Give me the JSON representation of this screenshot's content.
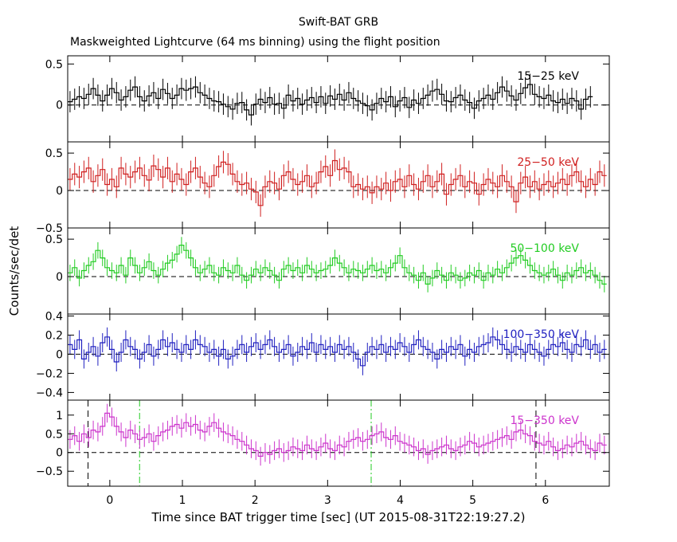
{
  "chart_data": {
    "type": "line",
    "title": "Swift-BAT GRB",
    "subtitle": "Maskweighted Lightcurve (64 ms binning) using the flight position",
    "xlabel": "Time since BAT trigger time [sec] (UT 2015-08-31T22:19:27.2)",
    "ylabel": "Counts/sec/det",
    "xlim": [
      -0.58,
      6.88
    ],
    "xticks": [
      0,
      1,
      2,
      3,
      4,
      5,
      6
    ],
    "bin_width": 0.064,
    "panels": [
      {
        "name": "15-25 keV",
        "label": "15−25 keV",
        "color": "#000000",
        "ylim": [
          -0.45,
          0.6
        ],
        "yticks": [
          0,
          0.5
        ],
        "ytick_labels": [
          "0",
          "0.5"
        ],
        "values": [
          0.04,
          0.07,
          0.1,
          0.08,
          0.13,
          0.2,
          0.12,
          0.05,
          0.12,
          0.2,
          0.15,
          0.06,
          0.1,
          0.18,
          0.22,
          0.1,
          0.05,
          0.11,
          0.15,
          0.08,
          0.19,
          0.14,
          0.08,
          0.12,
          0.2,
          0.18,
          0.2,
          0.22,
          0.15,
          0.12,
          0.08,
          0.05,
          0.04,
          0.01,
          -0.02,
          -0.05,
          0.02,
          0.03,
          -0.06,
          -0.12,
          0.01,
          0.07,
          0.03,
          0.09,
          0.01,
          0.02,
          -0.04,
          0.12,
          0.05,
          0.08,
          0.01,
          0.06,
          0.09,
          0.03,
          0.1,
          0.02,
          0.11,
          0.07,
          0.13,
          0.06,
          0.15,
          0.08,
          0.05,
          0.02,
          -0.01,
          -0.06,
          0.02,
          0.08,
          0.04,
          0.1,
          -0.02,
          0.05,
          0.09,
          -0.03,
          0.06,
          0.02,
          0.08,
          0.12,
          0.17,
          0.19,
          0.13,
          0.05,
          0.04,
          0.09,
          0.12,
          0.06,
          0.03,
          -0.04,
          0.05,
          0.08,
          0.12,
          0.07,
          0.15,
          0.22,
          0.17,
          0.11,
          0.06,
          0.14,
          0.21,
          0.25,
          0.13,
          0.1,
          0.08,
          0.12,
          0.05,
          0.03,
          0.07,
          0.02,
          0.08,
          0.05,
          -0.05,
          0.07,
          0.1
        ],
        "errors": 0.13
      },
      {
        "name": "25-50 keV",
        "label": "25−50 keV",
        "color": "#d02020",
        "ylim": [
          -0.5,
          0.65
        ],
        "yticks": [
          -0.5,
          0,
          0.5
        ],
        "ytick_labels": [
          "−0.5",
          "0",
          "0.5"
        ],
        "values": [
          0.15,
          0.22,
          0.18,
          0.25,
          0.3,
          0.12,
          0.2,
          0.28,
          0.08,
          0.15,
          0.05,
          0.3,
          0.22,
          0.18,
          0.25,
          0.3,
          0.2,
          0.14,
          0.33,
          0.28,
          0.18,
          0.3,
          0.12,
          0.22,
          0.15,
          0.08,
          0.25,
          0.3,
          0.18,
          0.1,
          0.05,
          0.2,
          0.32,
          0.38,
          0.35,
          0.22,
          0.12,
          0.08,
          0.1,
          0.02,
          -0.02,
          -0.2,
          0.05,
          0.12,
          0.1,
          0.02,
          0.2,
          0.25,
          0.15,
          0.08,
          0.12,
          0.2,
          0.05,
          0.1,
          0.25,
          0.32,
          0.2,
          0.4,
          0.28,
          0.3,
          0.25,
          0.05,
          0.08,
          0.02,
          0.05,
          -0.03,
          0.05,
          0.02,
          0.1,
          0.0,
          0.12,
          0.15,
          0.05,
          0.2,
          0.08,
          0.02,
          0.12,
          0.2,
          0.05,
          0.12,
          0.22,
          -0.05,
          0.08,
          0.15,
          0.2,
          0.05,
          0.12,
          0.1,
          -0.05,
          0.08,
          0.15,
          0.1,
          0.05,
          0.2,
          0.12,
          0.05,
          -0.15,
          0.1,
          0.18,
          0.05,
          0.12,
          0.02,
          0.08,
          0.12,
          0.05,
          0.1,
          0.15,
          0.08,
          0.2,
          0.25,
          0.12,
          0.05,
          0.15,
          0.08,
          0.25,
          0.2
        ],
        "errors": 0.15
      },
      {
        "name": "50-100 keV",
        "label": "50−100 keV",
        "color": "#22cc22",
        "ylim": [
          -0.5,
          0.65
        ],
        "yticks": [
          0,
          0.5
        ],
        "ytick_labels": [
          "0",
          "0.5"
        ],
        "values": [
          0.05,
          0.12,
          -0.02,
          0.08,
          0.15,
          0.2,
          0.35,
          0.25,
          0.12,
          0.08,
          0.05,
          0.15,
          0.02,
          0.25,
          0.15,
          0.05,
          0.12,
          0.2,
          0.08,
          0.02,
          0.1,
          0.18,
          0.22,
          0.3,
          0.42,
          0.35,
          0.25,
          0.12,
          0.05,
          0.1,
          0.15,
          0.05,
          0.02,
          0.12,
          0.08,
          0.05,
          0.15,
          0.02,
          -0.05,
          0.02,
          0.1,
          0.05,
          0.12,
          0.08,
          0.02,
          -0.05,
          0.1,
          0.15,
          0.08,
          0.12,
          0.05,
          0.15,
          0.1,
          0.05,
          0.08,
          0.1,
          0.15,
          0.25,
          0.18,
          0.12,
          0.05,
          0.1,
          0.08,
          0.05,
          0.1,
          0.15,
          0.08,
          0.1,
          0.05,
          0.12,
          0.18,
          0.28,
          0.12,
          0.05,
          0.02,
          -0.05,
          0.05,
          -0.1,
          -0.02,
          0.08,
          0.02,
          -0.05,
          0.05,
          0.02,
          -0.05,
          -0.02,
          0.05,
          0.02,
          0.08,
          -0.05,
          0.05,
          0.02,
          0.1,
          0.05,
          0.12,
          0.18,
          0.25,
          0.28,
          0.22,
          0.15,
          0.08,
          0.05,
          0.02,
          0.05,
          0.1,
          0.02,
          -0.05,
          0.05,
          0.02,
          0.08,
          0.12,
          0.05,
          0.08,
          0.02,
          -0.05,
          -0.1
        ],
        "errors": 0.11
      },
      {
        "name": "100-350 keV",
        "label": "100−350 keV",
        "color": "#2020c0",
        "ylim": [
          -0.48,
          0.42
        ],
        "yticks": [
          -0.4,
          -0.2,
          0,
          0.2,
          0.4
        ],
        "ytick_labels": [
          "−0.4",
          "−0.2",
          "0",
          "0.2",
          "0.4"
        ],
        "values": [
          0.1,
          0.05,
          0.15,
          -0.05,
          0.02,
          0.08,
          -0.02,
          0.12,
          0.18,
          0.05,
          -0.08,
          0.02,
          0.15,
          0.08,
          0.05,
          -0.05,
          0.02,
          0.1,
          -0.02,
          0.05,
          0.15,
          0.08,
          0.12,
          0.05,
          0.02,
          0.1,
          0.05,
          0.15,
          0.1,
          0.08,
          0.02,
          0.05,
          -0.02,
          0.05,
          -0.05,
          -0.02,
          0.05,
          0.1,
          0.02,
          0.08,
          0.12,
          0.05,
          0.1,
          0.15,
          0.08,
          0.02,
          0.05,
          0.1,
          -0.02,
          0.02,
          0.08,
          0.05,
          0.12,
          0.02,
          0.1,
          0.05,
          0.08,
          0.02,
          0.1,
          0.05,
          0.08,
          0.02,
          -0.05,
          -0.12,
          0.02,
          0.08,
          0.05,
          0.1,
          0.02,
          0.08,
          0.05,
          0.12,
          0.08,
          0.02,
          0.1,
          0.15,
          0.08,
          0.05,
          0.02,
          -0.05,
          0.05,
          0.02,
          0.08,
          0.05,
          0.1,
          -0.02,
          0.05,
          0.02,
          0.08,
          0.1,
          0.12,
          0.18,
          0.15,
          0.1,
          0.05,
          0.02,
          0.08,
          0.05,
          0.02,
          0.1,
          0.05,
          0.02,
          -0.02,
          0.05,
          0.1,
          0.08,
          0.12,
          0.05,
          0.02,
          0.1,
          0.08,
          0.15,
          0.05,
          0.1,
          0.02,
          0.05
        ],
        "errors": 0.1
      },
      {
        "name": "15-350 keV",
        "label": "15−350 keV",
        "color": "#cc33cc",
        "ylim": [
          -0.9,
          1.4
        ],
        "yticks": [
          -0.5,
          0,
          0.5,
          1
        ],
        "ytick_labels": [
          "−0.5",
          "0",
          "0.5",
          "1"
        ],
        "values": [
          0.35,
          0.45,
          0.3,
          0.5,
          0.4,
          0.6,
          0.55,
          0.7,
          1.05,
          0.95,
          0.7,
          0.55,
          0.4,
          0.6,
          0.5,
          0.35,
          0.4,
          0.5,
          0.3,
          0.45,
          0.55,
          0.6,
          0.7,
          0.75,
          0.65,
          0.8,
          0.7,
          0.75,
          0.6,
          0.55,
          0.7,
          0.8,
          0.65,
          0.55,
          0.5,
          0.45,
          0.35,
          0.3,
          0.2,
          0.1,
          0.05,
          -0.1,
          0.0,
          -0.05,
          0.05,
          0.1,
          0.0,
          0.05,
          0.15,
          0.1,
          0.05,
          0.2,
          0.1,
          0.05,
          0.15,
          0.25,
          0.1,
          0.05,
          0.2,
          0.15,
          0.3,
          0.35,
          0.4,
          0.3,
          0.35,
          0.45,
          0.5,
          0.55,
          0.4,
          0.35,
          0.45,
          0.3,
          0.25,
          0.2,
          0.15,
          0.05,
          0.1,
          -0.05,
          0.05,
          0.1,
          0.15,
          0.2,
          0.1,
          0.05,
          0.15,
          0.2,
          0.3,
          0.25,
          0.15,
          0.2,
          0.25,
          0.3,
          0.35,
          0.4,
          0.45,
          0.35,
          0.55,
          0.6,
          0.5,
          0.45,
          0.3,
          0.25,
          0.2,
          0.3,
          0.15,
          0.05,
          0.1,
          0.2,
          0.15,
          0.25,
          0.3,
          0.2,
          0.1,
          0.05,
          0.25,
          0.2
        ],
        "errors": 0.25,
        "vlines_black": [
          -0.3,
          5.87
        ],
        "vlines_green": [
          0.41,
          3.6
        ]
      }
    ]
  }
}
